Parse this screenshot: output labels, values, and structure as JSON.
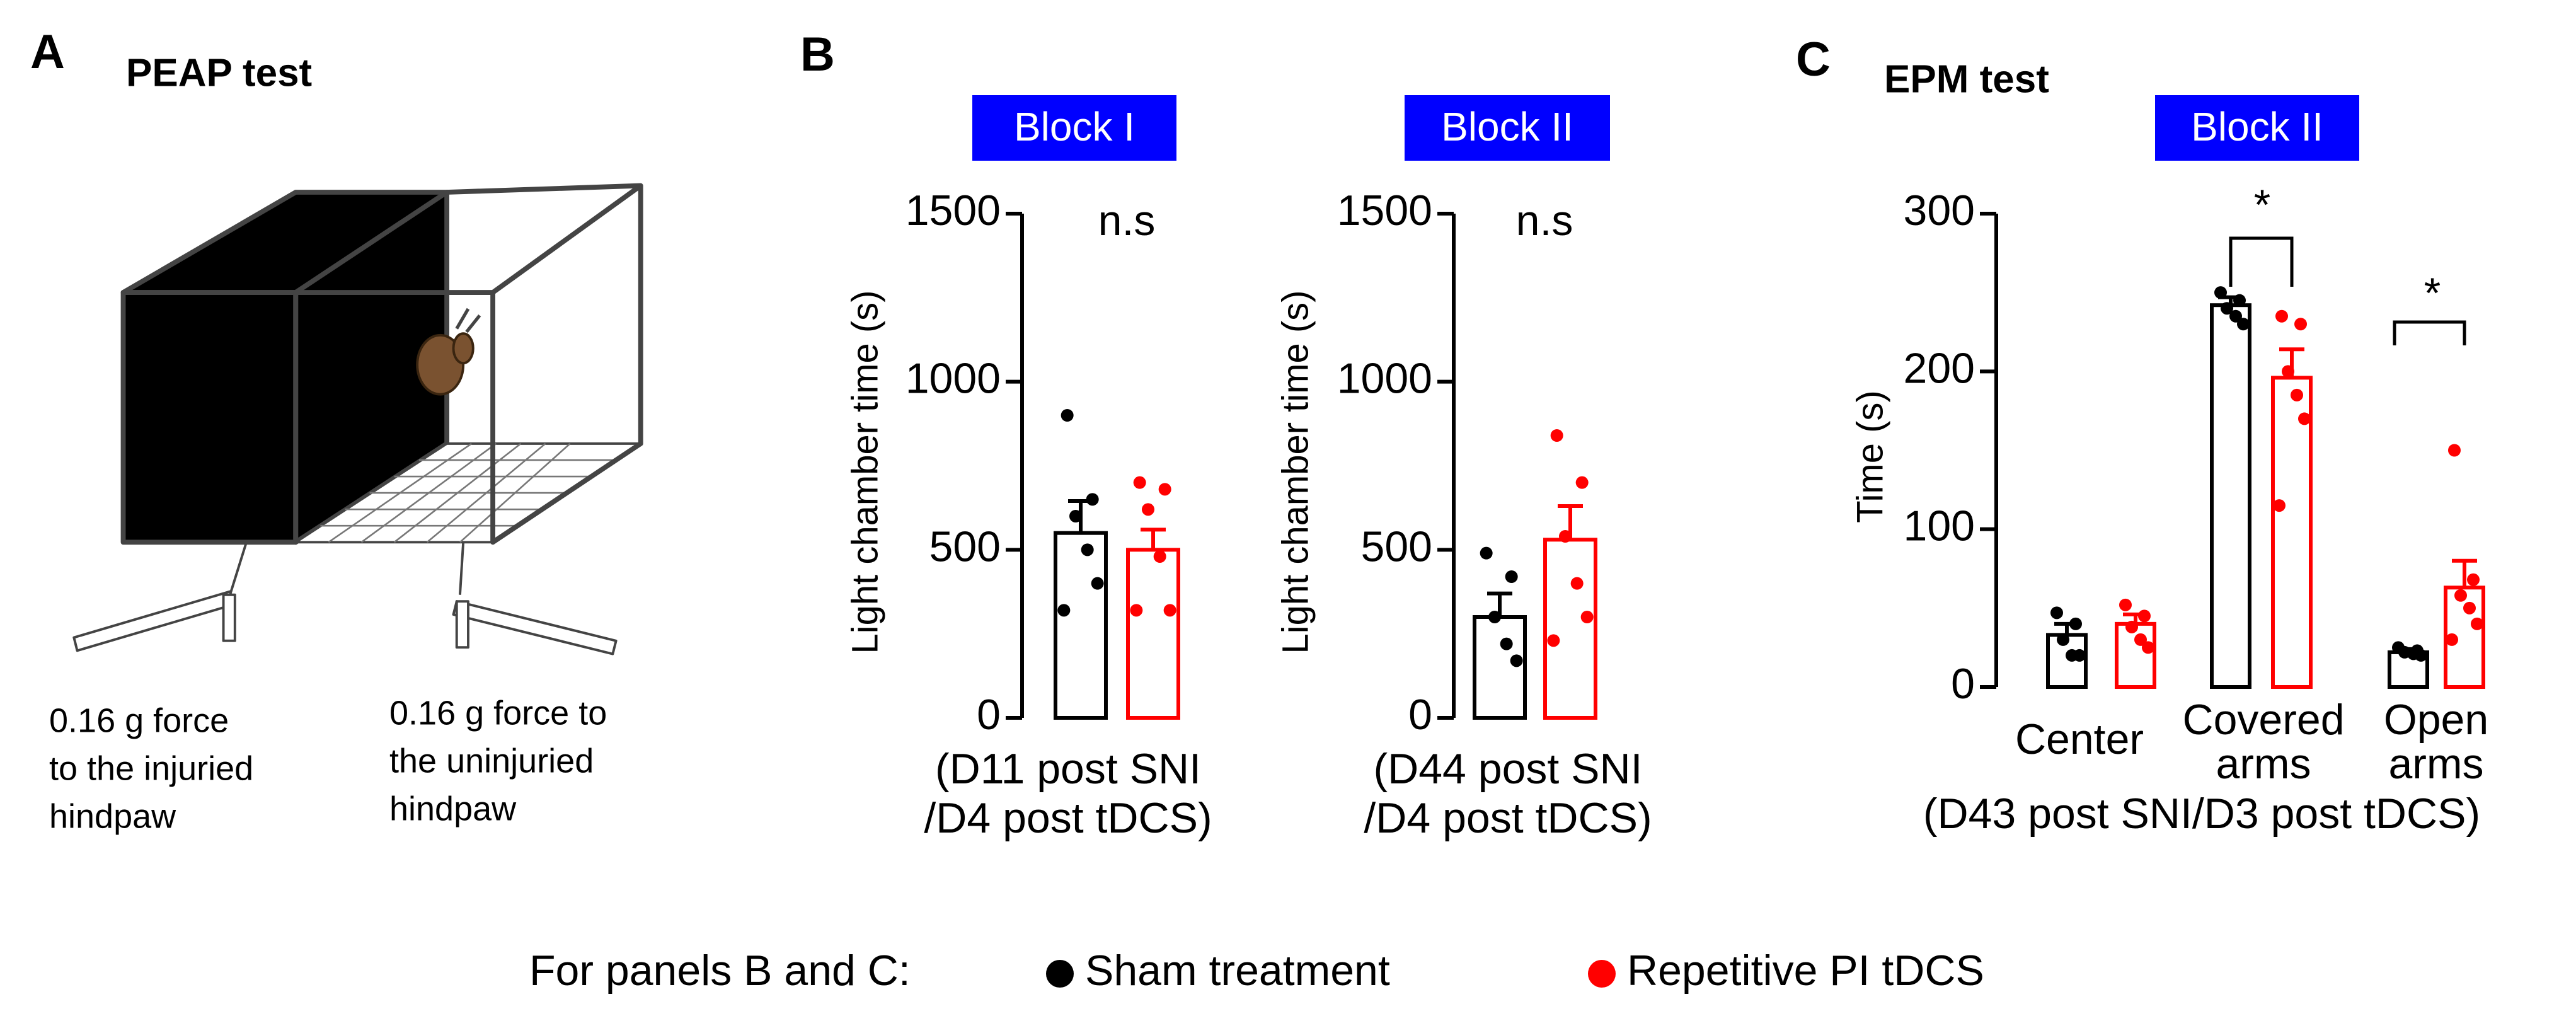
{
  "panels": {
    "A": {
      "label": "A",
      "title": "PEAP test",
      "notes": [
        [
          "0.16 g force",
          "to the injuried",
          "hindpaw"
        ],
        [
          "0.16 g force to",
          "the uninjuried",
          "hindpaw"
        ]
      ]
    },
    "B": {
      "label": "B"
    },
    "C": {
      "label": "C",
      "title": "EPM test"
    }
  },
  "chart_data": [
    {
      "type": "bar",
      "title": "Block I",
      "ylabel": "Light chamber time (s)",
      "xlabel": [
        "(D11 post SNI",
        "/D4 post tDCS)"
      ],
      "ylim": [
        0,
        1500
      ],
      "yticks": [
        0,
        500,
        1000,
        1500
      ],
      "annotations": [
        "n.s"
      ],
      "categories": [
        null
      ],
      "series": [
        {
          "color": "#000000",
          "values": [
            550
          ],
          "errors": [
            95
          ],
          "points": [
            [
              900,
              650,
              600,
              500,
              400,
              320
            ]
          ]
        },
        {
          "color": "#ff0000",
          "values": [
            500
          ],
          "errors": [
            60
          ],
          "points": [
            [
              700,
              680,
              620,
              480,
              320,
              320
            ]
          ]
        }
      ]
    },
    {
      "type": "bar",
      "title": "Block II",
      "ylabel": "Light chamber time (s)",
      "xlabel": [
        "(D44 post SNI",
        "/D4 post tDCS)"
      ],
      "ylim": [
        0,
        1500
      ],
      "yticks": [
        0,
        500,
        1000,
        1500
      ],
      "annotations": [
        "n.s"
      ],
      "categories": [
        null
      ],
      "series": [
        {
          "color": "#000000",
          "values": [
            300
          ],
          "errors": [
            70
          ],
          "points": [
            [
              490,
              420,
              300,
              220,
              170
            ]
          ]
        },
        {
          "color": "#ff0000",
          "values": [
            530
          ],
          "errors": [
            100
          ],
          "points": [
            [
              840,
              700,
              540,
              400,
              300,
              230
            ]
          ]
        }
      ]
    },
    {
      "type": "bar",
      "title": "Block II",
      "ylabel": "Time (s)",
      "xlabel": [
        "(D43 post SNI/D3 post tDCS)"
      ],
      "ylim": [
        0,
        300
      ],
      "yticks": [
        0,
        100,
        200,
        300
      ],
      "annotations": [
        "*",
        "*"
      ],
      "categories": [
        [
          "Center"
        ],
        [
          "Covered",
          "arms"
        ],
        [
          "Open",
          "arms"
        ]
      ],
      "series": [
        {
          "color": "#000000",
          "values": [
            33,
            242,
            22
          ],
          "errors": [
            7,
            5,
            2
          ],
          "points": [
            [
              47,
              40,
              30,
              20,
              20
            ],
            [
              250,
              245,
              240,
              235,
              230
            ],
            [
              25,
              23,
              22,
              21,
              20
            ]
          ]
        },
        {
          "color": "#ff0000",
          "values": [
            40,
            196,
            63
          ],
          "errors": [
            6,
            18,
            17
          ],
          "points": [
            [
              52,
              45,
              38,
              30,
              25
            ],
            [
              235,
              230,
              200,
              185,
              170,
              115
            ],
            [
              150,
              68,
              58,
              50,
              40,
              30
            ]
          ]
        }
      ]
    }
  ],
  "legend": {
    "prefix": "For panels B and C:",
    "entries": [
      {
        "name": "Sham treatment",
        "color": "#000000"
      },
      {
        "name": "Repetitive PI tDCS",
        "color": "#ff0000"
      }
    ]
  }
}
